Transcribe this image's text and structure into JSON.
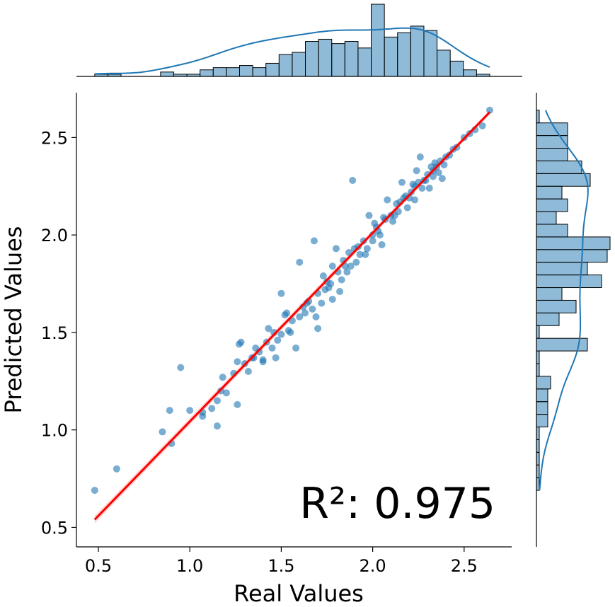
{
  "chart_data": {
    "type": "scatter",
    "xlabel": "Real Values",
    "ylabel": "Predicted Values",
    "xlim": [
      0.38,
      2.76
    ],
    "ylim": [
      0.4,
      2.73
    ],
    "xticks": [
      0.5,
      1.0,
      1.5,
      2.0,
      2.5
    ],
    "xtick_labels": [
      "0.5",
      "1.0",
      "1.5",
      "2.0",
      "2.5"
    ],
    "yticks": [
      0.5,
      1.0,
      1.5,
      2.0,
      2.5
    ],
    "ytick_labels": [
      "0.5",
      "1.0",
      "1.5",
      "2.0",
      "2.5"
    ],
    "annotation": "R²: 0.975",
    "annotation_values": {
      "r_squared": 0.975
    },
    "colors": {
      "points": "#1f77b4",
      "fit_line": "#ff0000",
      "hist": "#1f77b4",
      "kde": "#1f77b4"
    },
    "fit_line": {
      "x": [
        0.48,
        2.64
      ],
      "y": [
        0.54,
        2.63
      ]
    },
    "points": [
      [
        0.48,
        0.69
      ],
      [
        0.6,
        0.8
      ],
      [
        0.85,
        0.99
      ],
      [
        0.9,
        0.93
      ],
      [
        0.89,
        1.1
      ],
      [
        0.95,
        1.32
      ],
      [
        1.0,
        1.1
      ],
      [
        1.07,
        1.09
      ],
      [
        1.07,
        1.07
      ],
      [
        1.12,
        1.11
      ],
      [
        1.15,
        1.02
      ],
      [
        1.15,
        1.15
      ],
      [
        1.17,
        1.2
      ],
      [
        1.18,
        1.27
      ],
      [
        1.2,
        1.19
      ],
      [
        1.24,
        1.29
      ],
      [
        1.26,
        1.13
      ],
      [
        1.26,
        1.35
      ],
      [
        1.27,
        1.44
      ],
      [
        1.28,
        1.45
      ],
      [
        1.3,
        1.34
      ],
      [
        1.32,
        1.3
      ],
      [
        1.34,
        1.37
      ],
      [
        1.36,
        1.42
      ],
      [
        1.38,
        1.4
      ],
      [
        1.4,
        1.35
      ],
      [
        1.4,
        1.36
      ],
      [
        1.42,
        1.45
      ],
      [
        1.43,
        1.52
      ],
      [
        1.45,
        1.42
      ],
      [
        1.46,
        1.5
      ],
      [
        1.48,
        1.46
      ],
      [
        1.5,
        1.49
      ],
      [
        1.5,
        1.7
      ],
      [
        1.52,
        1.59
      ],
      [
        1.54,
        1.51
      ],
      [
        1.56,
        1.56
      ],
      [
        1.58,
        1.42
      ],
      [
        1.6,
        1.58
      ],
      [
        1.6,
        1.86
      ],
      [
        1.62,
        1.63
      ],
      [
        1.63,
        1.6
      ],
      [
        1.65,
        1.66
      ],
      [
        1.67,
        1.62
      ],
      [
        1.68,
        1.97
      ],
      [
        1.7,
        1.7
      ],
      [
        1.7,
        1.52
      ],
      [
        1.72,
        1.65
      ],
      [
        1.73,
        1.79
      ],
      [
        1.75,
        1.76
      ],
      [
        1.76,
        1.73
      ],
      [
        1.78,
        1.67
      ],
      [
        1.78,
        1.84
      ],
      [
        1.8,
        1.93
      ],
      [
        1.81,
        1.81
      ],
      [
        1.83,
        1.77
      ],
      [
        1.85,
        1.84
      ],
      [
        1.86,
        1.81
      ],
      [
        1.87,
        1.91
      ],
      [
        1.89,
        2.28
      ],
      [
        1.9,
        1.93
      ],
      [
        1.91,
        1.86
      ],
      [
        1.93,
        1.9
      ],
      [
        1.95,
        1.97
      ],
      [
        1.97,
        1.93
      ],
      [
        1.98,
        2.1
      ],
      [
        2.0,
        2.0
      ],
      [
        2.0,
        1.97
      ],
      [
        2.02,
        2.04
      ],
      [
        2.04,
        2.0
      ],
      [
        2.05,
        1.95
      ],
      [
        2.07,
        2.08
      ],
      [
        2.08,
        2.18
      ],
      [
        2.1,
        2.1
      ],
      [
        2.12,
        2.1
      ],
      [
        2.14,
        2.12
      ],
      [
        2.15,
        2.17
      ],
      [
        2.16,
        2.27
      ],
      [
        2.18,
        2.2
      ],
      [
        2.19,
        2.14
      ],
      [
        2.2,
        2.19
      ],
      [
        2.22,
        2.26
      ],
      [
        2.23,
        2.18
      ],
      [
        2.24,
        2.33
      ],
      [
        2.26,
        2.4
      ],
      [
        2.27,
        2.24
      ],
      [
        2.28,
        2.28
      ],
      [
        2.3,
        2.31
      ],
      [
        2.31,
        2.24
      ],
      [
        2.33,
        2.3
      ],
      [
        2.34,
        2.37
      ],
      [
        2.35,
        2.35
      ],
      [
        2.37,
        2.38
      ],
      [
        2.38,
        2.29
      ],
      [
        2.4,
        2.4
      ],
      [
        2.42,
        2.41
      ],
      [
        2.44,
        2.44
      ],
      [
        2.46,
        2.45
      ],
      [
        2.5,
        2.5
      ],
      [
        2.53,
        2.52
      ],
      [
        2.56,
        2.54
      ],
      [
        2.6,
        2.56
      ],
      [
        2.64,
        2.64
      ],
      [
        1.47,
        1.37
      ],
      [
        1.53,
        1.6
      ],
      [
        1.69,
        1.58
      ],
      [
        1.77,
        1.75
      ],
      [
        1.82,
        1.71
      ],
      [
        1.88,
        1.84
      ],
      [
        1.96,
        1.9
      ],
      [
        2.01,
        2.06
      ],
      [
        2.06,
        2.09
      ],
      [
        2.11,
        2.07
      ],
      [
        2.17,
        2.19
      ],
      [
        2.21,
        2.22
      ],
      [
        2.25,
        2.27
      ],
      [
        2.29,
        2.28
      ],
      [
        2.32,
        2.35
      ],
      [
        2.36,
        2.32
      ],
      [
        2.39,
        2.36
      ],
      [
        1.35,
        1.37
      ],
      [
        1.55,
        1.5
      ],
      [
        1.64,
        1.65
      ],
      [
        1.74,
        1.72
      ],
      [
        1.84,
        1.87
      ],
      [
        1.92,
        1.94
      ],
      [
        2.03,
        2.02
      ],
      [
        2.13,
        2.16
      ],
      [
        2.23,
        2.25
      ],
      [
        2.33,
        2.33
      ]
    ],
    "x_histogram": {
      "bin_edges": [
        0.48,
        0.552,
        0.624,
        0.696,
        0.768,
        0.84,
        0.912,
        0.984,
        1.056,
        1.128,
        1.2,
        1.272,
        1.344,
        1.416,
        1.488,
        1.56,
        1.632,
        1.704,
        1.776,
        1.848,
        1.92,
        1.992,
        2.064,
        2.136,
        2.208,
        2.28,
        2.352,
        2.424,
        2.496,
        2.568,
        2.64
      ],
      "counts": [
        1,
        1,
        0,
        0,
        0,
        2,
        1,
        1,
        3,
        4,
        4,
        5,
        4,
        6,
        10,
        11,
        16,
        17,
        15,
        16,
        13,
        33,
        18,
        20,
        23,
        21,
        12,
        7,
        3,
        1
      ]
    },
    "y_histogram": {
      "bin_edges": [
        0.69,
        0.755,
        0.82,
        0.885,
        0.95,
        1.015,
        1.08,
        1.145,
        1.21,
        1.275,
        1.34,
        1.405,
        1.47,
        1.535,
        1.6,
        1.665,
        1.73,
        1.795,
        1.86,
        1.925,
        1.99,
        2.055,
        2.12,
        2.185,
        2.25,
        2.315,
        2.38,
        2.445,
        2.51,
        2.575,
        2.64
      ],
      "counts": [
        1,
        1,
        1,
        1,
        1,
        4,
        4,
        4,
        5,
        1,
        1,
        18,
        1,
        8,
        14,
        9,
        23,
        18,
        25,
        26,
        11,
        7,
        11,
        9,
        19,
        16,
        11,
        11,
        11,
        1
      ]
    }
  }
}
